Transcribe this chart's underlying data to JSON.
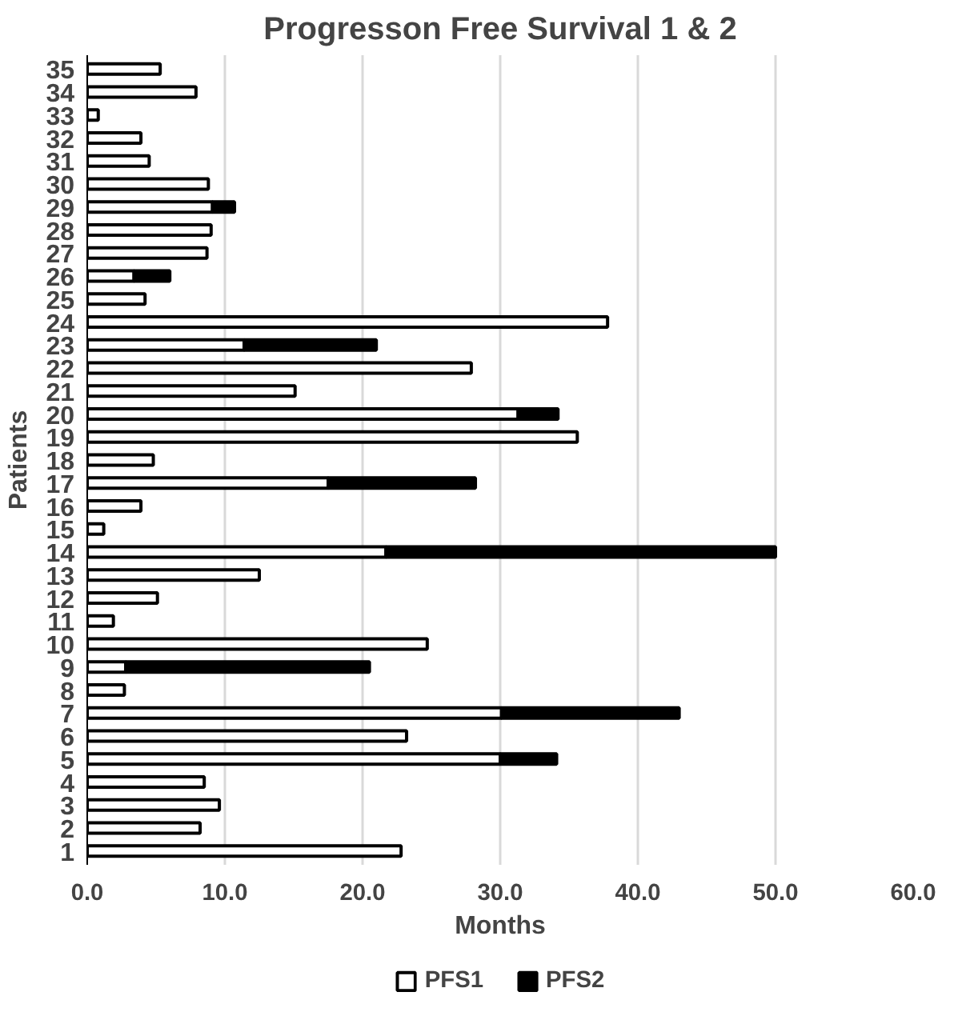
{
  "chart_data": {
    "type": "bar",
    "orientation": "horizontal",
    "stacked": true,
    "title": "Progresson Free Survival 1 & 2",
    "xlabel": "Months",
    "ylabel": "Patients",
    "categories": [
      "35",
      "34",
      "33",
      "32",
      "31",
      "30",
      "29",
      "28",
      "27",
      "26",
      "25",
      "24",
      "23",
      "22",
      "21",
      "20",
      "19",
      "18",
      "17",
      "16",
      "15",
      "14",
      "13",
      "12",
      "11",
      "10",
      "9",
      "8",
      "7",
      "6",
      "5",
      "4",
      "3",
      "2",
      "1"
    ],
    "series": [
      {
        "name": "PFS1",
        "color": "#ffffff",
        "values": [
          5.3,
          7.9,
          0.8,
          3.9,
          4.5,
          8.8,
          9.1,
          9.0,
          8.7,
          3.4,
          4.2,
          37.8,
          11.4,
          27.9,
          15.1,
          31.3,
          35.6,
          4.8,
          17.5,
          3.9,
          1.2,
          21.7,
          12.5,
          5.1,
          1.9,
          24.7,
          2.8,
          2.7,
          30.1,
          23.2,
          30.0,
          8.5,
          9.6,
          8.2,
          22.8
        ]
      },
      {
        "name": "PFS2",
        "color": "#000000",
        "values": [
          null,
          null,
          null,
          null,
          null,
          null,
          1.6,
          null,
          null,
          2.6,
          null,
          null,
          9.6,
          null,
          null,
          2.9,
          null,
          null,
          10.7,
          null,
          null,
          28.3,
          null,
          null,
          null,
          null,
          17.7,
          null,
          12.9,
          null,
          4.1,
          null,
          null,
          null,
          null
        ]
      }
    ],
    "xlim": [
      0,
      60
    ],
    "xticks": [
      {
        "value": 0,
        "label": "0.0"
      },
      {
        "value": 10,
        "label": "10.0"
      },
      {
        "value": 20,
        "label": "20.0"
      },
      {
        "value": 30,
        "label": "30.0"
      },
      {
        "value": 40,
        "label": "40.0"
      },
      {
        "value": 50,
        "label": "50.0"
      },
      {
        "value": 60,
        "label": "60.0"
      }
    ],
    "grid": "x",
    "legend": "bottom"
  }
}
